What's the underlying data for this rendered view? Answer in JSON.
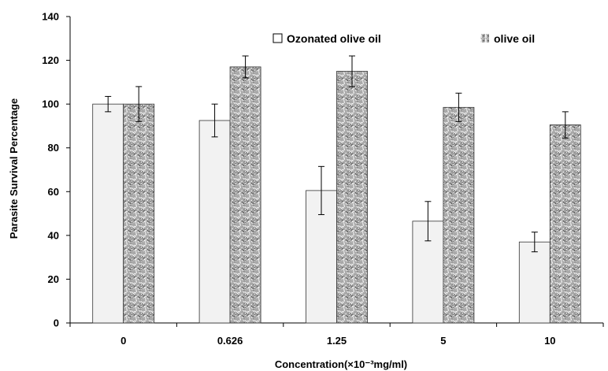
{
  "chart_data": {
    "type": "bar",
    "categories": [
      "0",
      "0.626",
      "1.25",
      "5",
      "10"
    ],
    "series": [
      {
        "name": "Ozonated olive oil",
        "values": [
          100,
          92.5,
          60.5,
          46.5,
          37
        ],
        "errors": [
          3.5,
          7.5,
          11,
          9,
          4.5
        ],
        "color": "#f2f2f2",
        "pattern": "plain"
      },
      {
        "name": "olive oil",
        "values": [
          100,
          117,
          115,
          98.5,
          90.5
        ],
        "errors": [
          8,
          5,
          7,
          6.5,
          6
        ],
        "color": "#8a8a8a",
        "pattern": "speckle"
      }
    ],
    "xlabel": "Concentration(×10⁻³mg/ml)",
    "ylabel": "Parasite Survival Percentage",
    "ylim": [
      0,
      140
    ],
    "yticks": [
      0,
      20,
      40,
      60,
      80,
      100,
      120,
      140
    ],
    "grid": false,
    "legend_position": "top"
  }
}
